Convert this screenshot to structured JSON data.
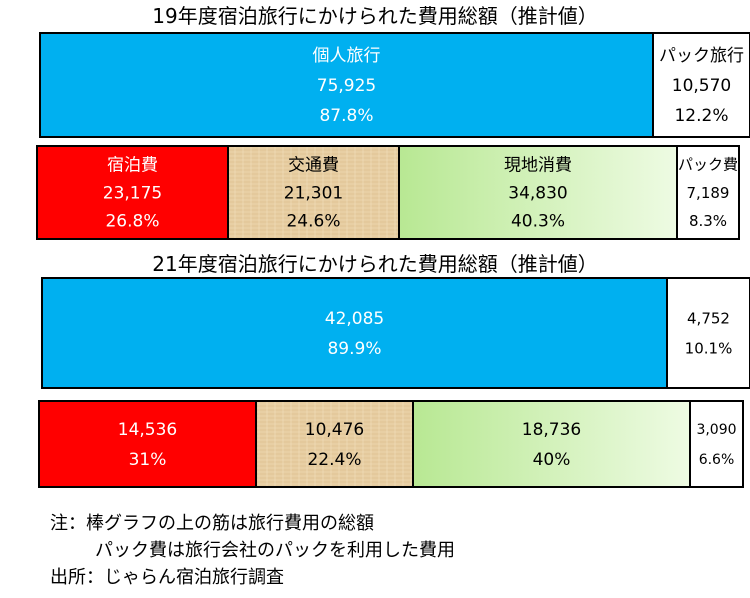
{
  "titles": {
    "y19": "19年度宿泊旅行にかけられた費用総額（推計値）",
    "y21": "21年度宿泊旅行にかけられた費用総額（推計値）"
  },
  "chart_data": [
    {
      "type": "bar",
      "stacked": "horizontal-100%",
      "title": "19年度宿泊旅行にかけられた費用総額（推計値）",
      "rows": [
        {
          "segments": [
            {
              "label": "個人旅行",
              "value": 75925,
              "value_text": "75,925",
              "percent": 87.8,
              "percent_text": "87.8%",
              "color": "#00b0f0"
            },
            {
              "label": "パック旅行",
              "value": 10570,
              "value_text": "10,570",
              "percent": 12.2,
              "percent_text": "12.2%",
              "color": "#ffffff"
            }
          ]
        },
        {
          "segments": [
            {
              "label": "宿泊費",
              "value": 23175,
              "value_text": "23,175",
              "percent": 26.8,
              "percent_text": "26.8%",
              "color": "#ff0000"
            },
            {
              "label": "交通費",
              "value": 21301,
              "value_text": "21,301",
              "percent": 24.6,
              "percent_text": "24.6%",
              "color": "#e6c9a0"
            },
            {
              "label": "現地消費",
              "value": 34830,
              "value_text": "34,830",
              "percent": 40.3,
              "percent_text": "40.3%",
              "color": "#c9f0a8"
            },
            {
              "label": "パック費",
              "value": 7189,
              "value_text": "7,189",
              "percent": 8.3,
              "percent_text": "8.3%",
              "color": "#ffffff"
            }
          ]
        }
      ]
    },
    {
      "type": "bar",
      "stacked": "horizontal-100%",
      "title": "21年度宿泊旅行にかけられた費用総額（推計値）",
      "rows": [
        {
          "segments": [
            {
              "label": "",
              "value": 42085,
              "value_text": "42,085",
              "percent": 89.9,
              "percent_text": "89.9%",
              "color": "#00b0f0"
            },
            {
              "label": "",
              "value": 4752,
              "value_text": "4,752",
              "percent": 10.1,
              "percent_text": "10.1%",
              "color": "#ffffff"
            }
          ]
        },
        {
          "segments": [
            {
              "label": "",
              "value": 14536,
              "value_text": "14,536",
              "percent": 31,
              "percent_text": "31%",
              "color": "#ff0000"
            },
            {
              "label": "",
              "value": 10476,
              "value_text": "10,476",
              "percent": 22.4,
              "percent_text": "22.4%",
              "color": "#e6c9a0"
            },
            {
              "label": "",
              "value": 18736,
              "value_text": "18,736",
              "percent": 40,
              "percent_text": "40%",
              "color": "#c9f0a8"
            },
            {
              "label": "",
              "value": 3090,
              "value_text": "3,090",
              "percent": 6.6,
              "percent_text": "6.6%",
              "color": "#ffffff"
            }
          ]
        }
      ]
    }
  ],
  "notes": {
    "line1": "注：棒グラフの上の筋は旅行費用の総額",
    "line2": "パック費は旅行会社のパックを利用した費用",
    "line3": "出所：じゃらん宿泊旅行調査"
  }
}
